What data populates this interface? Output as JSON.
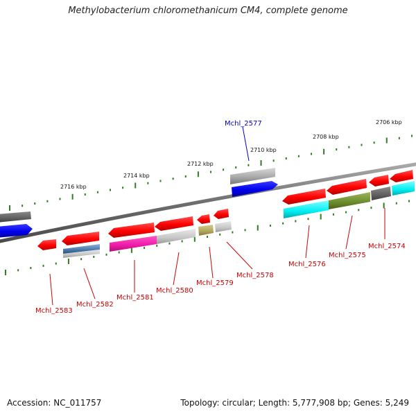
{
  "header": {
    "title": "Methylobacterium chloromethanicum CM4, complete genome"
  },
  "footer": {
    "accession": "Accession: NC_011757",
    "summary": "Topology: circular; Length: 5,777,908 bp; Genes: 5,249"
  },
  "kbp_ticks": [
    "2716 kbp",
    "2714 kbp",
    "2712 kbp",
    "2710 kbp",
    "2708 kbp",
    "2706 kbp"
  ],
  "genes": [
    {
      "label": "Mchl_2577",
      "color": "#0000cc",
      "strand": "forward"
    },
    {
      "label": "Mchl_2583",
      "color": "#cc0000",
      "strand": "reverse"
    },
    {
      "label": "Mchl_2582",
      "color": "#cc0000",
      "strand": "reverse"
    },
    {
      "label": "Mchl_2581",
      "color": "#cc0000",
      "strand": "reverse"
    },
    {
      "label": "Mchl_2580",
      "color": "#cc0000",
      "strand": "reverse"
    },
    {
      "label": "Mchl_2579",
      "color": "#cc0000",
      "strand": "reverse"
    },
    {
      "label": "Mchl_2578",
      "color": "#cc0000",
      "strand": "reverse"
    },
    {
      "label": "Mchl_2576",
      "color": "#cc0000",
      "strand": "reverse"
    },
    {
      "label": "Mchl_2575",
      "color": "#cc0000",
      "strand": "reverse"
    },
    {
      "label": "Mchl_2574",
      "color": "#cc0000",
      "strand": "reverse"
    }
  ],
  "colors": {
    "cds_red": "#ff0000",
    "forward_blue": "#0000ee",
    "backbone": "#777777",
    "tick_green": "#2e7d1e",
    "label_red": "#cc0000",
    "label_blue": "#0000cc"
  }
}
